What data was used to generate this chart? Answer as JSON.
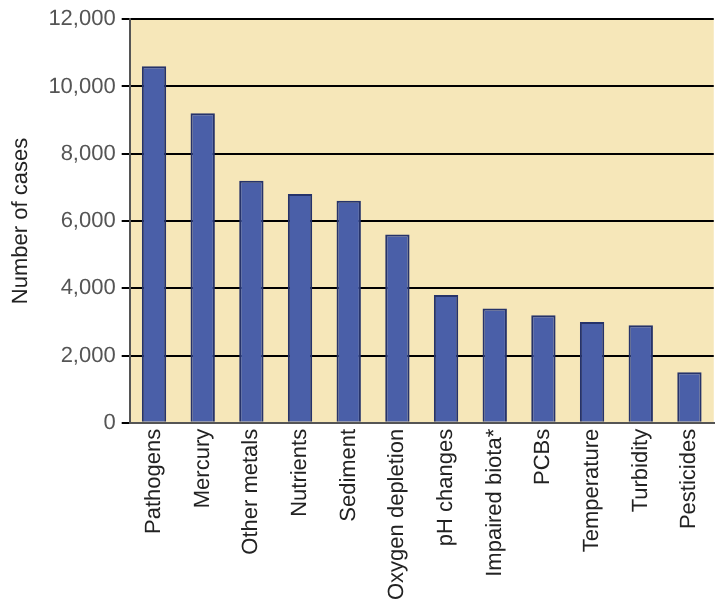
{
  "chart_data": {
    "type": "bar",
    "ylabel": "Number of cases",
    "categories": [
      "Pathogens",
      "Mercury",
      "Other metals",
      "Nutrients",
      "Sediment",
      "Oxygen depletion",
      "pH changes",
      "Impaired biota*",
      "PCBs",
      "Temperature",
      "Turbidity",
      "Pesticides"
    ],
    "values": [
      10600,
      9200,
      7200,
      6800,
      6600,
      5600,
      3800,
      3400,
      3200,
      3000,
      2900,
      1500
    ],
    "color": "#4a5fa8",
    "ylim": [
      0,
      12000
    ],
    "yticks": [
      {
        "value": 0,
        "label": "0"
      },
      {
        "value": 2000,
        "label": "2,000"
      },
      {
        "value": 4000,
        "label": "4,000"
      },
      {
        "value": 6000,
        "label": "6,000"
      },
      {
        "value": 8000,
        "label": "8,000"
      },
      {
        "value": 10000,
        "label": "10,000"
      },
      {
        "value": 12000,
        "label": "12,000"
      }
    ],
    "grid": "y"
  }
}
